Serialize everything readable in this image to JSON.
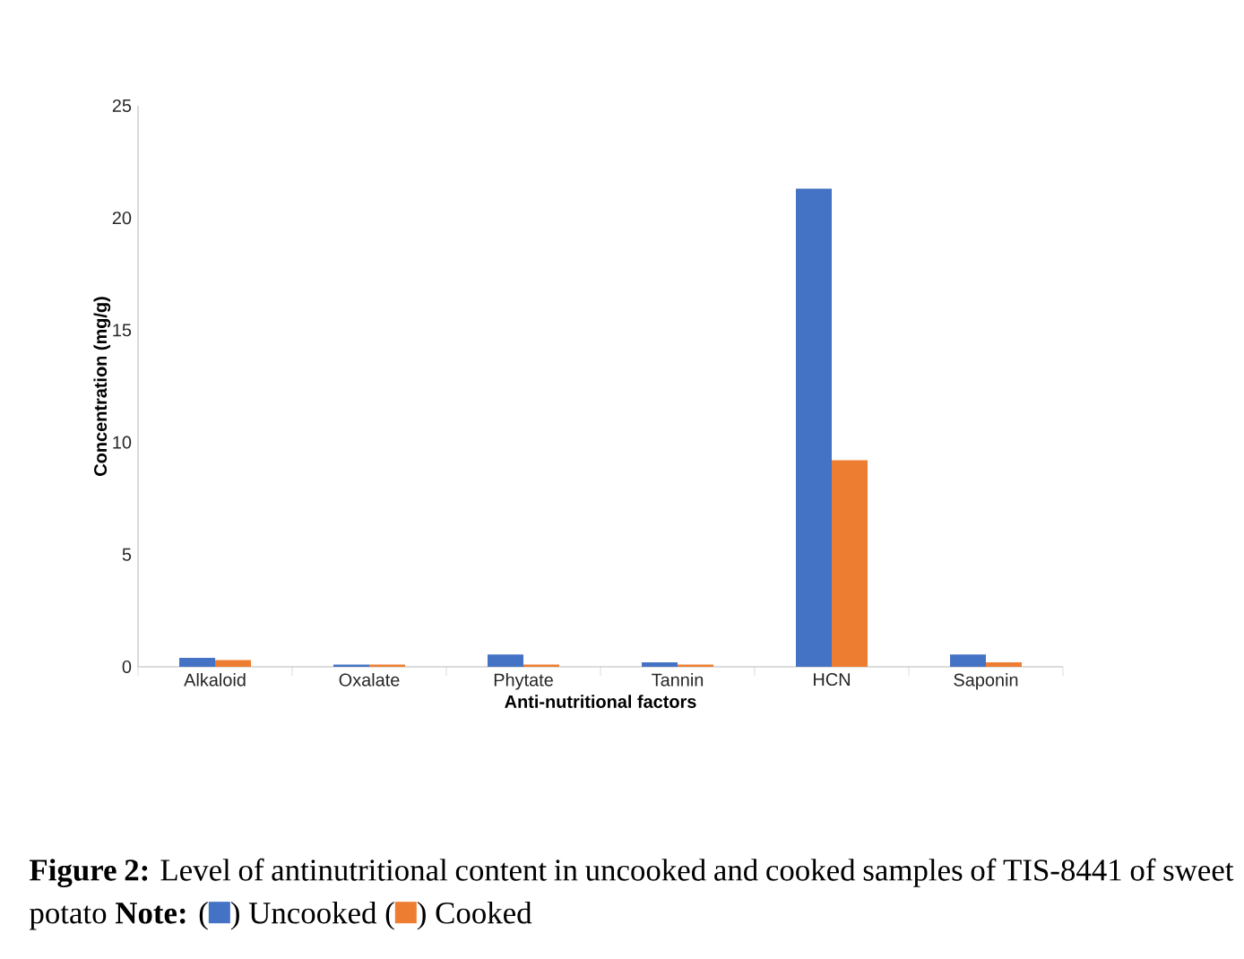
{
  "chart_data": {
    "type": "bar",
    "xlabel": "Anti-nutritional factors",
    "ylabel": "Concentration (mg/g)",
    "categories": [
      "Alkaloid",
      "Oxalate",
      "Phytate",
      "Tannin",
      "HCN",
      "Saponin"
    ],
    "series": [
      {
        "name": "Uncooked",
        "color": "#4472c4",
        "values": [
          0.4,
          0.1,
          0.55,
          0.2,
          21.3,
          0.55
        ]
      },
      {
        "name": "Cooked",
        "color": "#ed7d31",
        "values": [
          0.3,
          0.1,
          0.1,
          0.1,
          9.2,
          0.2
        ]
      }
    ],
    "ylim": [
      0,
      25
    ],
    "yticks": [
      0,
      5,
      10,
      15,
      20,
      25
    ],
    "legend": "bottom",
    "annotations": [
      "**Figure 2:** Level of antinutritional content in uncooked and cooked samples of TIS-8441 of sweet potato **Note:**",
      "(",
      ")",
      "(",
      ")"
    ]
  }
}
